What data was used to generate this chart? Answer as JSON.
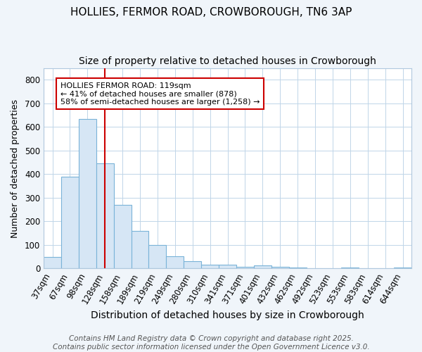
{
  "title1": "HOLLIES, FERMOR ROAD, CROWBOROUGH, TN6 3AP",
  "title2": "Size of property relative to detached houses in Crowborough",
  "xlabel": "Distribution of detached houses by size in Crowborough",
  "ylabel": "Number of detached properties",
  "categories": [
    "37sqm",
    "67sqm",
    "98sqm",
    "128sqm",
    "158sqm",
    "189sqm",
    "219sqm",
    "249sqm",
    "280sqm",
    "310sqm",
    "341sqm",
    "371sqm",
    "401sqm",
    "432sqm",
    "462sqm",
    "492sqm",
    "523sqm",
    "553sqm",
    "583sqm",
    "614sqm",
    "644sqm"
  ],
  "values": [
    50,
    390,
    635,
    445,
    270,
    160,
    100,
    53,
    30,
    17,
    17,
    7,
    13,
    8,
    4,
    0,
    0,
    5,
    0,
    0,
    4
  ],
  "bar_color": "#d6e6f5",
  "bar_edge_color": "#7ab3d8",
  "red_line_x": 3.0,
  "red_line_label": "HOLLIES FERMOR ROAD: 119sqm",
  "annotation_line2": "← 41% of detached houses are smaller (878)",
  "annotation_line3": "58% of semi-detached houses are larger (1,258) →",
  "annotation_box_color": "#ffffff",
  "annotation_box_edge": "#cc0000",
  "red_line_color": "#cc0000",
  "ylim": [
    0,
    850
  ],
  "yticks": [
    0,
    100,
    200,
    300,
    400,
    500,
    600,
    700,
    800
  ],
  "grid_color": "#c0d5e8",
  "plot_bg_color": "#ffffff",
  "fig_bg_color": "#f0f5fa",
  "footnote": "Contains HM Land Registry data © Crown copyright and database right 2025.\nContains public sector information licensed under the Open Government Licence v3.0.",
  "title1_fontsize": 11,
  "title2_fontsize": 10,
  "xlabel_fontsize": 10,
  "ylabel_fontsize": 9,
  "tick_fontsize": 8.5,
  "footnote_fontsize": 7.5,
  "annotation_fontsize": 8
}
